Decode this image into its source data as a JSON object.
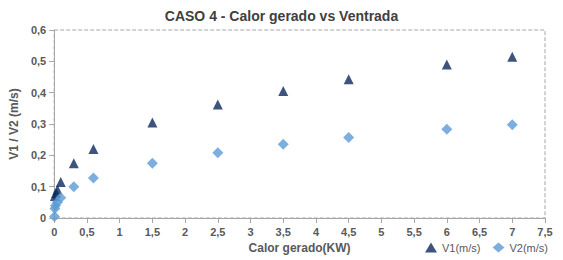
{
  "chart_data": {
    "type": "scatter",
    "title": "CASO 4 - Calor gerado vs Ventrada",
    "x_label": "Calor gerado(KW)",
    "y_label": "V1 / V2 (m/s)",
    "xlim": [
      0,
      7.5
    ],
    "xticks": [
      0,
      {
        "value": 0.5,
        "label": "0,5"
      },
      1,
      {
        "value": 1.5,
        "label": "1,5"
      },
      2,
      {
        "value": 2.5,
        "label": "2,5"
      },
      3,
      {
        "value": 3.5,
        "label": "3,5"
      },
      4,
      {
        "value": 4.5,
        "label": "4,5"
      },
      5,
      {
        "value": 5.5,
        "label": "5,5"
      },
      6,
      {
        "value": 6.5,
        "label": "6,5"
      },
      7,
      {
        "value": 7.5,
        "label": "7,5"
      }
    ],
    "ylim": [
      0,
      0.6
    ],
    "yticks": [
      0,
      {
        "value": 0.1,
        "label": "0,1"
      },
      {
        "value": 0.2,
        "label": "0,2"
      },
      {
        "value": 0.3,
        "label": "0,3"
      },
      {
        "value": 0.4,
        "label": "0,4"
      },
      {
        "value": 0.5,
        "label": "0,5"
      },
      {
        "value": 0.6,
        "label": "0,6"
      }
    ],
    "grid": false,
    "legend": "lower right",
    "series": [
      {
        "name": "V1(m/s)",
        "color": "#0d2a5e",
        "marker": "triangle",
        "x": [
          0.01,
          0.03,
          0.05,
          0.1,
          0.3,
          0.6,
          1.5,
          2.5,
          3.5,
          4.5,
          6,
          7
        ],
        "values": [
          0.07,
          0.08,
          0.09,
          0.115,
          0.175,
          0.22,
          0.305,
          0.362,
          0.405,
          0.443,
          0.49,
          0.515
        ]
      },
      {
        "name": "V2(m/s)",
        "color": "#5b9bd5",
        "marker": "diamond",
        "x": [
          0.005,
          0.01,
          0.02,
          0.05,
          0.1,
          0.3,
          0.6,
          1.5,
          2.5,
          3.5,
          4.5,
          6,
          7
        ],
        "values": [
          0.005,
          0.03,
          0.04,
          0.05,
          0.065,
          0.1,
          0.128,
          0.175,
          0.208,
          0.235,
          0.257,
          0.283,
          0.298
        ]
      }
    ]
  }
}
